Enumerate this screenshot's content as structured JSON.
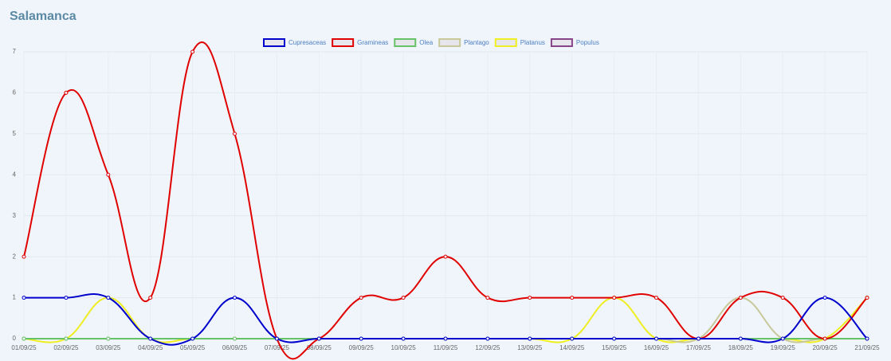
{
  "chart_data": {
    "type": "line",
    "title": "Salamanca",
    "categories": [
      "01/09/25",
      "02/09/25",
      "03/09/25",
      "04/09/25",
      "05/09/25",
      "06/09/25",
      "07/09/25",
      "08/09/25",
      "09/09/25",
      "10/09/25",
      "11/09/25",
      "12/09/25",
      "13/09/25",
      "14/09/25",
      "15/09/25",
      "16/09/25",
      "17/09/25",
      "18/09/25",
      "19/09/25",
      "20/09/25",
      "21/09/25"
    ],
    "series": [
      {
        "name": "Cupresaceas",
        "color": "#0000cc",
        "values": [
          1,
          1,
          1,
          0,
          0,
          1,
          0,
          0,
          0,
          0,
          0,
          0,
          0,
          0,
          0,
          0,
          0,
          0,
          0,
          1,
          0
        ]
      },
      {
        "name": "Gramineas",
        "color": "#e00000",
        "values": [
          2,
          6,
          4,
          1,
          7,
          5,
          0,
          0,
          1,
          1,
          2,
          1,
          1,
          1,
          1,
          1,
          0,
          1,
          1,
          0,
          1
        ]
      },
      {
        "name": "Olea",
        "color": "#66c266",
        "values": [
          0,
          0,
          0,
          0,
          0,
          0,
          0,
          0,
          0,
          0,
          0,
          0,
          0,
          0,
          0,
          0,
          0,
          0,
          0,
          0,
          0
        ]
      },
      {
        "name": "Plantago",
        "color": "#c8c89a",
        "values": [
          0,
          0,
          0,
          0,
          0,
          0,
          0,
          0,
          0,
          0,
          0,
          0,
          0,
          0,
          0,
          0,
          0,
          1,
          0,
          0,
          0
        ]
      },
      {
        "name": "Platanus",
        "color": "#eeee22",
        "values": [
          0,
          0,
          1,
          0,
          0,
          0,
          0,
          0,
          0,
          0,
          0,
          0,
          0,
          0,
          1,
          0,
          0,
          0,
          0,
          0,
          1
        ]
      },
      {
        "name": "Populus",
        "color": "#884488",
        "values": [
          0,
          0,
          0,
          0,
          0,
          0,
          0,
          0,
          0,
          0,
          0,
          0,
          0,
          0,
          0,
          0,
          0,
          0,
          0,
          0,
          0
        ]
      }
    ],
    "ylim": [
      0,
      7
    ],
    "yticks": [
      0,
      1,
      2,
      3,
      4,
      5,
      6,
      7
    ],
    "grid": true
  }
}
